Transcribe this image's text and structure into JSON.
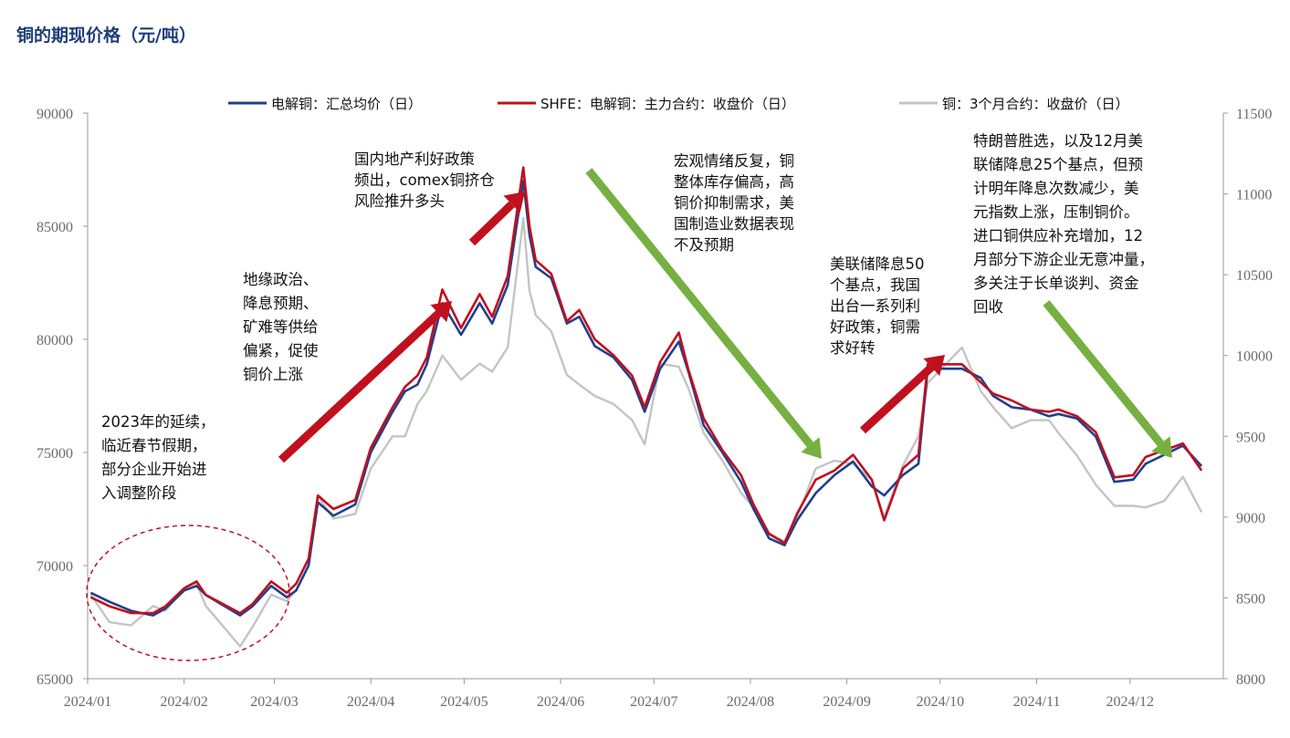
{
  "title": "铜的期现价格（元/吨）",
  "chart_data": {
    "type": "line",
    "xlabel": "",
    "ylabel_left": "",
    "ylabel_right": "",
    "x_ticks": [
      "2024/01",
      "2024/02",
      "2024/03",
      "2024/04",
      "2024/05",
      "2024/06",
      "2024/07",
      "2024/08",
      "2024/09",
      "2024/10",
      "2024/11",
      "2024/12"
    ],
    "y_left": {
      "min": 65000,
      "max": 90000,
      "ticks": [
        65000,
        70000,
        75000,
        80000,
        85000,
        90000
      ]
    },
    "y_right": {
      "min": 8000,
      "max": 11500,
      "ticks": [
        8000,
        8500,
        9000,
        9500,
        10000,
        10500,
        11000,
        11500
      ]
    },
    "legend_position": "top",
    "series": [
      {
        "name": "电解铜：汇总均价（日）",
        "color": "#1f3f8f",
        "axis": "left",
        "x": [
          "2024-01-02",
          "2024-01-08",
          "2024-01-15",
          "2024-01-22",
          "2024-01-26",
          "2024-02-01",
          "2024-02-05",
          "2024-02-08",
          "2024-02-19",
          "2024-02-23",
          "2024-02-29",
          "2024-03-05",
          "2024-03-08",
          "2024-03-12",
          "2024-03-15",
          "2024-03-20",
          "2024-03-27",
          "2024-04-01",
          "2024-04-08",
          "2024-04-12",
          "2024-04-16",
          "2024-04-19",
          "2024-04-24",
          "2024-04-30",
          "2024-05-06",
          "2024-05-10",
          "2024-05-15",
          "2024-05-20",
          "2024-05-22",
          "2024-05-24",
          "2024-05-29",
          "2024-06-03",
          "2024-06-07",
          "2024-06-12",
          "2024-06-18",
          "2024-06-24",
          "2024-06-28",
          "2024-07-03",
          "2024-07-09",
          "2024-07-12",
          "2024-07-17",
          "2024-07-23",
          "2024-07-29",
          "2024-08-02",
          "2024-08-07",
          "2024-08-12",
          "2024-08-16",
          "2024-08-22",
          "2024-08-28",
          "2024-09-03",
          "2024-09-09",
          "2024-09-13",
          "2024-09-19",
          "2024-09-24",
          "2024-09-27",
          "2024-10-08",
          "2024-10-14",
          "2024-10-18",
          "2024-10-24",
          "2024-10-30",
          "2024-11-05",
          "2024-11-08",
          "2024-11-14",
          "2024-11-20",
          "2024-11-26",
          "2024-12-02",
          "2024-12-06",
          "2024-12-12",
          "2024-12-18",
          "2024-12-24"
        ],
        "y": [
          68800,
          68400,
          68000,
          67800,
          68100,
          68900,
          69100,
          68700,
          67800,
          68200,
          69100,
          68600,
          68900,
          70000,
          72800,
          72200,
          72700,
          75000,
          76800,
          77700,
          78000,
          78900,
          81600,
          80200,
          81600,
          80700,
          82400,
          87000,
          84600,
          83200,
          82700,
          80700,
          81000,
          79700,
          79200,
          78200,
          76800,
          78700,
          79900,
          78600,
          76200,
          75000,
          73700,
          72500,
          71200,
          70900,
          72000,
          73200,
          74000,
          74600,
          73500,
          73100,
          74000,
          74500,
          78700,
          78700,
          78300,
          77500,
          77000,
          76900,
          76600,
          76700,
          76500,
          75700,
          73700,
          73800,
          74500,
          74900,
          75300,
          74400
        ]
      },
      {
        "name": "SHFE：电解铜：主力合约：收盘价（日）",
        "color": "#c0101e",
        "axis": "left",
        "x": [
          "2024-01-02",
          "2024-01-08",
          "2024-01-15",
          "2024-01-22",
          "2024-01-26",
          "2024-02-01",
          "2024-02-05",
          "2024-02-08",
          "2024-02-19",
          "2024-02-23",
          "2024-02-29",
          "2024-03-05",
          "2024-03-08",
          "2024-03-12",
          "2024-03-15",
          "2024-03-20",
          "2024-03-27",
          "2024-04-01",
          "2024-04-08",
          "2024-04-12",
          "2024-04-16",
          "2024-04-19",
          "2024-04-24",
          "2024-04-30",
          "2024-05-06",
          "2024-05-10",
          "2024-05-15",
          "2024-05-20",
          "2024-05-22",
          "2024-05-24",
          "2024-05-29",
          "2024-06-03",
          "2024-06-07",
          "2024-06-12",
          "2024-06-18",
          "2024-06-24",
          "2024-06-28",
          "2024-07-03",
          "2024-07-09",
          "2024-07-12",
          "2024-07-17",
          "2024-07-23",
          "2024-07-29",
          "2024-08-02",
          "2024-08-07",
          "2024-08-12",
          "2024-08-16",
          "2024-08-22",
          "2024-08-28",
          "2024-09-03",
          "2024-09-09",
          "2024-09-13",
          "2024-09-19",
          "2024-09-24",
          "2024-09-27",
          "2024-10-08",
          "2024-10-14",
          "2024-10-18",
          "2024-10-24",
          "2024-10-30",
          "2024-11-05",
          "2024-11-08",
          "2024-11-14",
          "2024-11-20",
          "2024-11-26",
          "2024-12-02",
          "2024-12-06",
          "2024-12-12",
          "2024-12-18",
          "2024-12-24"
        ],
        "y": [
          68600,
          68200,
          67900,
          67900,
          68200,
          69000,
          69300,
          68700,
          67900,
          68300,
          69300,
          68800,
          69200,
          70300,
          73100,
          72500,
          72900,
          75200,
          77000,
          77900,
          78400,
          79200,
          82200,
          80500,
          82000,
          81000,
          82800,
          87600,
          85000,
          83500,
          82900,
          80800,
          81300,
          80000,
          79300,
          78400,
          77000,
          79000,
          80300,
          78700,
          76500,
          75100,
          74000,
          72700,
          71400,
          71000,
          72300,
          73800,
          74200,
          74900,
          73800,
          72000,
          74300,
          74900,
          78900,
          78900,
          78100,
          77600,
          77300,
          76900,
          76800,
          76900,
          76600,
          75900,
          73900,
          74000,
          74800,
          75100,
          75400,
          74200
        ]
      },
      {
        "name": "铜：3个月合约：收盘价（日）",
        "color": "#c4c4c4",
        "axis": "right",
        "x": [
          "2024-01-02",
          "2024-01-08",
          "2024-01-15",
          "2024-01-22",
          "2024-01-26",
          "2024-02-01",
          "2024-02-05",
          "2024-02-08",
          "2024-02-19",
          "2024-02-23",
          "2024-02-29",
          "2024-03-05",
          "2024-03-08",
          "2024-03-12",
          "2024-03-15",
          "2024-03-20",
          "2024-03-27",
          "2024-04-01",
          "2024-04-08",
          "2024-04-12",
          "2024-04-16",
          "2024-04-19",
          "2024-04-24",
          "2024-04-30",
          "2024-05-06",
          "2024-05-10",
          "2024-05-15",
          "2024-05-20",
          "2024-05-22",
          "2024-05-24",
          "2024-05-29",
          "2024-06-03",
          "2024-06-07",
          "2024-06-12",
          "2024-06-18",
          "2024-06-24",
          "2024-06-28",
          "2024-07-03",
          "2024-07-09",
          "2024-07-12",
          "2024-07-17",
          "2024-07-23",
          "2024-07-29",
          "2024-08-02",
          "2024-08-07",
          "2024-08-12",
          "2024-08-16",
          "2024-08-22",
          "2024-08-28",
          "2024-09-03",
          "2024-09-09",
          "2024-09-13",
          "2024-09-19",
          "2024-09-24",
          "2024-09-27",
          "2024-10-08",
          "2024-10-14",
          "2024-10-18",
          "2024-10-24",
          "2024-10-30",
          "2024-11-05",
          "2024-11-08",
          "2024-11-14",
          "2024-11-20",
          "2024-11-26",
          "2024-12-02",
          "2024-12-06",
          "2024-12-12",
          "2024-12-18",
          "2024-12-24"
        ],
        "y": [
          8520,
          8350,
          8330,
          8450,
          8420,
          8560,
          8590,
          8450,
          8200,
          8320,
          8520,
          8480,
          8550,
          8700,
          9130,
          8990,
          9020,
          9300,
          9500,
          9500,
          9700,
          9780,
          10000,
          9850,
          9950,
          9900,
          10050,
          10850,
          10400,
          10250,
          10150,
          9880,
          9820,
          9750,
          9700,
          9600,
          9450,
          9950,
          9930,
          9800,
          9520,
          9350,
          9150,
          9060,
          8900,
          8850,
          9000,
          9300,
          9350,
          9330,
          9230,
          9000,
          9320,
          9500,
          9830,
          10050,
          9780,
          9680,
          9550,
          9600,
          9600,
          9520,
          9380,
          9200,
          9070,
          9070,
          9060,
          9100,
          9250,
          9030
        ]
      }
    ],
    "annotations": [
      {
        "text": [
          "2023年的延续，",
          "临近春节假期，",
          "部分企业开始进",
          "入调整阶段"
        ]
      },
      {
        "text": [
          "地缘政治、",
          "降息预期、",
          "矿难等供给",
          "偏紧，促使",
          "铜价上涨"
        ]
      },
      {
        "text": [
          "国内地产利好政策",
          "频出，comex铜挤仓",
          "风险推升多头"
        ]
      },
      {
        "text": [
          "宏观情绪反复，铜",
          "整体库存偏高，高",
          "铜价抑制需求，美",
          "国制造业数据表现",
          "不及预期"
        ]
      },
      {
        "text": [
          "美联储降息50",
          "个基点，我国",
          "出台一系列利",
          "好政策，铜需",
          "求好转"
        ]
      },
      {
        "text": [
          "特朗普胜选，以及12月美",
          "联储降息25个基点，但预",
          "计明年降息次数减少，美",
          "元指数上涨，压制铜价。",
          "进口铜供应补充增加，12",
          "月部分下游企业无意冲量，",
          "多关注于长单谈判、资金",
          "回收"
        ]
      }
    ]
  }
}
